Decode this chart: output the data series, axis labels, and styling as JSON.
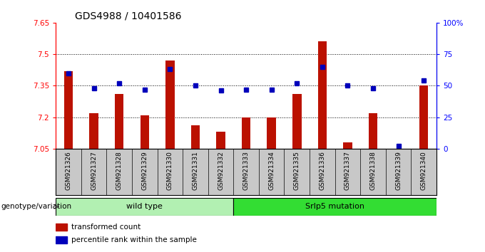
{
  "title": "GDS4988 / 10401586",
  "samples": [
    "GSM921326",
    "GSM921327",
    "GSM921328",
    "GSM921329",
    "GSM921330",
    "GSM921331",
    "GSM921332",
    "GSM921333",
    "GSM921334",
    "GSM921335",
    "GSM921336",
    "GSM921337",
    "GSM921338",
    "GSM921339",
    "GSM921340"
  ],
  "transformed_count": [
    7.42,
    7.22,
    7.31,
    7.21,
    7.47,
    7.16,
    7.13,
    7.2,
    7.2,
    7.31,
    7.56,
    7.08,
    7.22,
    7.05,
    7.35
  ],
  "percentile_rank": [
    60,
    48,
    52,
    47,
    63,
    50,
    46,
    47,
    47,
    52,
    65,
    50,
    48,
    2,
    54
  ],
  "groups": [
    {
      "label": "wild type",
      "start": 0,
      "end": 7,
      "color": "#b2f0b2"
    },
    {
      "label": "Srlp5 mutation",
      "start": 7,
      "end": 15,
      "color": "#33dd33"
    }
  ],
  "ylim_left": [
    7.05,
    7.65
  ],
  "ylim_right": [
    0,
    100
  ],
  "yticks_left": [
    7.05,
    7.2,
    7.35,
    7.5,
    7.65
  ],
  "yticks_right": [
    0,
    25,
    50,
    75,
    100
  ],
  "ytick_labels_left": [
    "7.05",
    "7.2",
    "7.35",
    "7.5",
    "7.65"
  ],
  "ytick_labels_right": [
    "0",
    "25",
    "50",
    "75",
    "100%"
  ],
  "hlines": [
    7.2,
    7.35,
    7.5
  ],
  "bar_color": "#BB1100",
  "dot_color": "#0000BB",
  "bar_bottom": 7.05,
  "legend_labels": [
    "transformed count",
    "percentile rank within the sample"
  ],
  "legend_colors": [
    "#BB1100",
    "#0000BB"
  ],
  "genotype_label": "genotype/variation",
  "tick_area_bg": "#C8C8C8"
}
